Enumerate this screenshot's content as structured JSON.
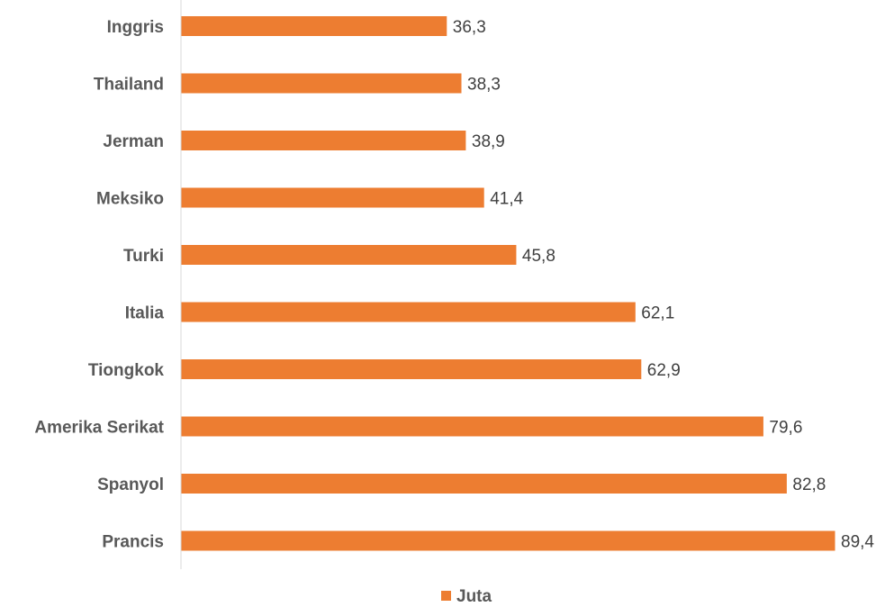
{
  "chart_data": {
    "type": "bar",
    "orientation": "horizontal",
    "categories": [
      "Inggris",
      "Thailand",
      "Jerman",
      "Meksiko",
      "Turki",
      "Italia",
      "Tiongkok",
      "Amerika Serikat",
      "Spanyol",
      "Prancis"
    ],
    "series": [
      {
        "name": "Juta",
        "values": [
          36.3,
          38.3,
          38.9,
          41.4,
          45.8,
          62.1,
          62.9,
          79.6,
          82.8,
          89.4
        ],
        "value_labels": [
          "36,3",
          "38,3",
          "38,9",
          "41,4",
          "45,8",
          "62,1",
          "62,9",
          "79,6",
          "82,8",
          "89,4"
        ],
        "color": "#ED7D31"
      }
    ],
    "title": "",
    "xlabel": "",
    "ylabel": "",
    "xlim": [
      0,
      89.4
    ],
    "grid": false,
    "legend": {
      "position": "bottom",
      "entries": [
        "Juta"
      ]
    },
    "axis_color": "#D9D9D9"
  }
}
